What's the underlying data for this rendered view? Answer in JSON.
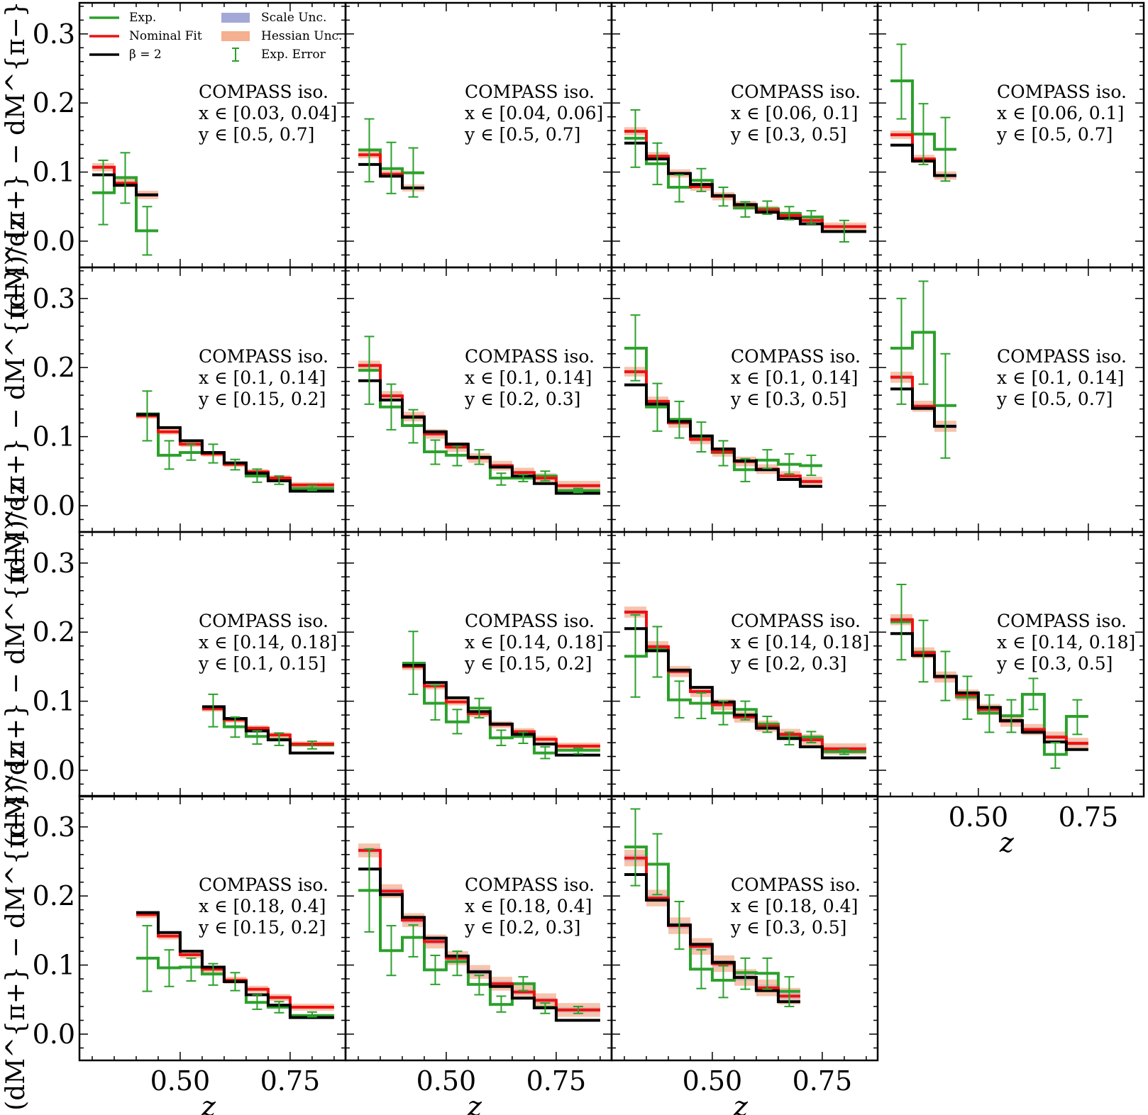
{
  "chart_data": {
    "type": "step-histogram-grid",
    "grid": {
      "rows": 4,
      "cols": 4
    },
    "xlabel": "z",
    "ylabel": "(dM^{π+} − dM^{π−})/dz",
    "xlim": [
      0.271,
      0.876
    ],
    "ylim": [
      -0.038,
      0.345
    ],
    "xticks": [
      0.5,
      0.75
    ],
    "xtick_labels": [
      "0.50",
      "0.75"
    ],
    "yticks": [
      0.0,
      0.1,
      0.2,
      0.3
    ],
    "ytick_labels": [
      "0.0",
      "0.1",
      "0.2",
      "0.3"
    ],
    "legend": {
      "placement": "top-left of first panel",
      "entries": [
        {
          "label": "Exp.",
          "kind": "line",
          "color": "#2ca02c"
        },
        {
          "label": "Nominal Fit",
          "kind": "line",
          "color": "#ee1111"
        },
        {
          "label": "β = 2",
          "kind": "line",
          "color": "#000000"
        },
        {
          "label": "Scale Unc.",
          "kind": "band",
          "color": "#a3a8d6"
        },
        {
          "label": "Hessian Unc.",
          "kind": "band",
          "color": "#f4b090"
        },
        {
          "label": "Exp. Error",
          "kind": "errorbar",
          "color": "#2ca02c"
        }
      ]
    },
    "colors": {
      "exp": "#2ca02c",
      "nominal": "#ee1111",
      "beta2": "#000000",
      "scale_band": "#a3a8d6",
      "hessian_band": "#f4b090"
    },
    "panels": [
      {
        "row": 0,
        "col": 0,
        "dataset": "COMPASS iso.",
        "x_bin": "x ∈ [0.03, 0.04]",
        "y_bin": "y ∈ [0.5, 0.7]",
        "bin_edges": [
          0.3,
          0.35,
          0.4,
          0.45
        ],
        "exp": [
          0.07,
          0.092,
          0.015
        ],
        "exp_err_hi": [
          0.117,
          0.128,
          0.05
        ],
        "exp_err_lo": [
          0.024,
          0.055,
          -0.02
        ],
        "nominal": [
          0.107,
          0.084,
          0.067
        ],
        "beta2": [
          0.096,
          0.081,
          0.067
        ],
        "hessian_unc": 0.006
      },
      {
        "row": 0,
        "col": 1,
        "dataset": "COMPASS iso.",
        "x_bin": "x ∈ [0.04, 0.06]",
        "y_bin": "y ∈ [0.5, 0.7]",
        "bin_edges": [
          0.3,
          0.35,
          0.4,
          0.45
        ],
        "exp": [
          0.132,
          0.105,
          0.099
        ],
        "exp_err_hi": [
          0.177,
          0.143,
          0.135
        ],
        "exp_err_lo": [
          0.086,
          0.069,
          0.064
        ],
        "nominal": [
          0.125,
          0.097,
          0.077
        ],
        "beta2": [
          0.111,
          0.094,
          0.077
        ],
        "hessian_unc": 0.005
      },
      {
        "row": 0,
        "col": 2,
        "dataset": "COMPASS iso.",
        "x_bin": "x ∈ [0.06, 0.1]",
        "y_bin": "y ∈ [0.3, 0.5]",
        "bin_edges": [
          0.3,
          0.35,
          0.4,
          0.45,
          0.5,
          0.55,
          0.6,
          0.65,
          0.7,
          0.75,
          0.85
        ],
        "exp": [
          0.149,
          0.112,
          0.078,
          0.088,
          0.065,
          0.048,
          0.047,
          0.04,
          0.035,
          0.014
        ],
        "exp_err_hi": [
          0.19,
          0.142,
          0.096,
          0.105,
          0.078,
          0.057,
          0.058,
          0.05,
          0.044,
          0.03
        ],
        "exp_err_lo": [
          0.107,
          0.082,
          0.057,
          0.072,
          0.051,
          0.035,
          0.039,
          0.031,
          0.025,
          -0.001
        ],
        "nominal": [
          0.159,
          0.123,
          0.098,
          0.079,
          0.065,
          0.052,
          0.045,
          0.037,
          0.03,
          0.021
        ],
        "beta2": [
          0.142,
          0.119,
          0.098,
          0.082,
          0.066,
          0.053,
          0.042,
          0.033,
          0.025,
          0.014
        ],
        "hessian_unc": 0.006
      },
      {
        "row": 0,
        "col": 3,
        "dataset": "COMPASS iso.",
        "x_bin": "x ∈ [0.06, 0.1]",
        "y_bin": "y ∈ [0.5, 0.7]",
        "bin_edges": [
          0.3,
          0.35,
          0.4,
          0.45
        ],
        "exp": [
          0.232,
          0.155,
          0.133
        ],
        "exp_err_hi": [
          0.285,
          0.199,
          0.179
        ],
        "exp_err_lo": [
          0.177,
          0.111,
          0.087
        ],
        "nominal": [
          0.154,
          0.119,
          0.095
        ],
        "beta2": [
          0.139,
          0.116,
          0.095
        ],
        "hessian_unc": 0.006
      },
      {
        "row": 1,
        "col": 0,
        "dataset": "COMPASS iso.",
        "x_bin": "x ∈ [0.1, 0.14]",
        "y_bin": "y ∈ [0.15, 0.2]",
        "bin_edges": [
          0.4,
          0.45,
          0.5,
          0.55,
          0.6,
          0.65,
          0.7,
          0.75,
          0.85
        ],
        "exp": [
          0.133,
          0.073,
          0.077,
          0.075,
          0.06,
          0.043,
          0.037,
          0.025
        ],
        "exp_err_hi": [
          0.166,
          0.094,
          0.089,
          0.089,
          0.067,
          0.053,
          0.043,
          0.029
        ],
        "exp_err_lo": [
          0.094,
          0.053,
          0.066,
          0.062,
          0.052,
          0.034,
          0.031,
          0.022
        ],
        "nominal": [
          0.13,
          0.107,
          0.089,
          0.075,
          0.06,
          0.049,
          0.04,
          0.03
        ],
        "beta2": [
          0.132,
          0.113,
          0.094,
          0.077,
          0.062,
          0.047,
          0.036,
          0.021
        ],
        "hessian_unc": 0.004
      },
      {
        "row": 1,
        "col": 1,
        "dataset": "COMPASS iso.",
        "x_bin": "x ∈ [0.1, 0.14]",
        "y_bin": "y ∈ [0.2, 0.3]",
        "bin_edges": [
          0.3,
          0.35,
          0.4,
          0.45,
          0.5,
          0.55,
          0.6,
          0.65,
          0.7,
          0.75,
          0.85
        ],
        "exp": [
          0.196,
          0.143,
          0.116,
          0.078,
          0.073,
          0.07,
          0.04,
          0.04,
          0.043,
          0.022
        ],
        "exp_err_hi": [
          0.245,
          0.176,
          0.139,
          0.095,
          0.086,
          0.081,
          0.047,
          0.045,
          0.05,
          0.025
        ],
        "exp_err_lo": [
          0.147,
          0.11,
          0.091,
          0.06,
          0.058,
          0.06,
          0.03,
          0.035,
          0.036,
          0.019
        ],
        "nominal": [
          0.203,
          0.159,
          0.129,
          0.104,
          0.085,
          0.069,
          0.058,
          0.048,
          0.04,
          0.029
        ],
        "beta2": [
          0.181,
          0.153,
          0.128,
          0.107,
          0.089,
          0.07,
          0.056,
          0.043,
          0.032,
          0.018
        ],
        "hessian_unc": 0.007
      },
      {
        "row": 1,
        "col": 2,
        "dataset": "COMPASS iso.",
        "x_bin": "x ∈ [0.1, 0.14]",
        "y_bin": "y ∈ [0.3, 0.5]",
        "bin_edges": [
          0.3,
          0.35,
          0.4,
          0.45,
          0.5,
          0.55,
          0.6,
          0.65,
          0.7,
          0.75
        ],
        "exp": [
          0.228,
          0.143,
          0.125,
          0.099,
          0.077,
          0.052,
          0.066,
          0.06,
          0.058
        ],
        "exp_err_hi": [
          0.276,
          0.177,
          0.151,
          0.121,
          0.094,
          0.068,
          0.081,
          0.075,
          0.073
        ],
        "exp_err_lo": [
          0.181,
          0.108,
          0.098,
          0.078,
          0.058,
          0.035,
          0.054,
          0.046,
          0.044
        ],
        "nominal": [
          0.194,
          0.151,
          0.12,
          0.096,
          0.078,
          0.064,
          0.053,
          0.043,
          0.035
        ],
        "beta2": [
          0.175,
          0.147,
          0.122,
          0.101,
          0.082,
          0.065,
          0.052,
          0.038,
          0.028
        ],
        "hessian_unc": 0.007
      },
      {
        "row": 1,
        "col": 3,
        "dataset": "COMPASS iso.",
        "x_bin": "x ∈ [0.1, 0.14]",
        "y_bin": "y ∈ [0.5, 0.7]",
        "bin_edges": [
          0.3,
          0.35,
          0.4,
          0.45
        ],
        "exp": [
          0.228,
          0.251,
          0.145
        ],
        "exp_err_hi": [
          0.3,
          0.325,
          0.22
        ],
        "exp_err_lo": [
          0.147,
          0.176,
          0.069
        ],
        "nominal": [
          0.186,
          0.144,
          0.115
        ],
        "beta2": [
          0.169,
          0.141,
          0.115
        ],
        "hessian_unc": 0.008
      },
      {
        "row": 2,
        "col": 0,
        "dataset": "COMPASS iso.",
        "x_bin": "x ∈ [0.14, 0.18]",
        "y_bin": "y ∈ [0.1, 0.15]",
        "bin_edges": [
          0.55,
          0.6,
          0.65,
          0.7,
          0.75,
          0.85
        ],
        "exp": [
          0.089,
          0.063,
          0.049,
          0.045,
          0.037
        ],
        "exp_err_hi": [
          0.11,
          0.077,
          0.057,
          0.054,
          0.042
        ],
        "exp_err_lo": [
          0.063,
          0.048,
          0.038,
          0.036,
          0.031
        ],
        "nominal": [
          0.089,
          0.073,
          0.061,
          0.051,
          0.038
        ],
        "beta2": [
          0.092,
          0.075,
          0.057,
          0.044,
          0.025
        ],
        "hessian_unc": 0.004
      },
      {
        "row": 2,
        "col": 1,
        "dataset": "COMPASS iso.",
        "x_bin": "x ∈ [0.14, 0.18]",
        "y_bin": "y ∈ [0.15, 0.2]",
        "bin_edges": [
          0.4,
          0.45,
          0.5,
          0.55,
          0.6,
          0.65,
          0.7,
          0.75,
          0.85
        ],
        "exp": [
          0.155,
          0.097,
          0.07,
          0.09,
          0.047,
          0.049,
          0.025,
          0.029
        ],
        "exp_err_hi": [
          0.201,
          0.123,
          0.088,
          0.104,
          0.058,
          0.055,
          0.034,
          0.032
        ],
        "exp_err_lo": [
          0.11,
          0.073,
          0.053,
          0.076,
          0.036,
          0.039,
          0.017,
          0.024
        ],
        "nominal": [
          0.15,
          0.122,
          0.099,
          0.082,
          0.066,
          0.056,
          0.045,
          0.035
        ],
        "beta2": [
          0.152,
          0.127,
          0.105,
          0.085,
          0.067,
          0.052,
          0.038,
          0.022
        ],
        "hessian_unc": 0.005
      },
      {
        "row": 2,
        "col": 2,
        "dataset": "COMPASS iso.",
        "x_bin": "x ∈ [0.14, 0.18]",
        "y_bin": "y ∈ [0.2, 0.3]",
        "bin_edges": [
          0.3,
          0.35,
          0.4,
          0.45,
          0.5,
          0.55,
          0.6,
          0.65,
          0.7,
          0.75,
          0.85
        ],
        "exp": [
          0.165,
          0.175,
          0.102,
          0.097,
          0.083,
          0.088,
          0.067,
          0.048,
          0.048,
          0.027
        ],
        "exp_err_hi": [
          0.225,
          0.208,
          0.129,
          0.112,
          0.1,
          0.1,
          0.078,
          0.055,
          0.056,
          0.03
        ],
        "exp_err_lo": [
          0.106,
          0.135,
          0.076,
          0.075,
          0.066,
          0.073,
          0.055,
          0.037,
          0.04,
          0.023
        ],
        "nominal": [
          0.229,
          0.179,
          0.143,
          0.114,
          0.095,
          0.077,
          0.064,
          0.052,
          0.044,
          0.031
        ],
        "beta2": [
          0.205,
          0.173,
          0.145,
          0.12,
          0.099,
          0.08,
          0.061,
          0.046,
          0.034,
          0.018
        ],
        "hessian_unc": 0.008
      },
      {
        "row": 2,
        "col": 3,
        "dataset": "COMPASS iso.",
        "x_bin": "x ∈ [0.14, 0.18]",
        "y_bin": "y ∈ [0.3, 0.5]",
        "bin_edges": [
          0.3,
          0.35,
          0.4,
          0.45,
          0.5,
          0.55,
          0.6,
          0.65,
          0.7,
          0.75
        ],
        "exp": [
          0.215,
          0.171,
          0.136,
          0.106,
          0.083,
          0.079,
          0.11,
          0.023,
          0.078
        ],
        "exp_err_hi": [
          0.269,
          0.217,
          0.172,
          0.136,
          0.109,
          0.102,
          0.133,
          0.04,
          0.102
        ],
        "exp_err_lo": [
          0.16,
          0.128,
          0.101,
          0.074,
          0.055,
          0.055,
          0.088,
          0.003,
          0.052
        ],
        "nominal": [
          0.218,
          0.17,
          0.135,
          0.109,
          0.088,
          0.071,
          0.059,
          0.048,
          0.039
        ],
        "beta2": [
          0.198,
          0.166,
          0.136,
          0.112,
          0.091,
          0.072,
          0.055,
          0.041,
          0.03
        ],
        "hessian_unc": 0.008
      },
      {
        "row": 3,
        "col": 0,
        "dataset": "COMPASS iso.",
        "x_bin": "x ∈ [0.18, 0.4]",
        "y_bin": "y ∈ [0.15, 0.2]",
        "bin_edges": [
          0.4,
          0.45,
          0.5,
          0.55,
          0.6,
          0.65,
          0.7,
          0.75,
          0.85
        ],
        "exp": [
          0.11,
          0.096,
          0.097,
          0.087,
          0.077,
          0.046,
          0.039,
          0.027
        ],
        "exp_err_hi": [
          0.157,
          0.122,
          0.11,
          0.102,
          0.089,
          0.057,
          0.047,
          0.032
        ],
        "exp_err_lo": [
          0.062,
          0.069,
          0.077,
          0.071,
          0.063,
          0.036,
          0.031,
          0.025
        ],
        "nominal": [
          0.173,
          0.142,
          0.115,
          0.094,
          0.078,
          0.065,
          0.053,
          0.039
        ],
        "beta2": [
          0.176,
          0.147,
          0.12,
          0.097,
          0.076,
          0.057,
          0.042,
          0.024
        ],
        "hessian_unc": 0.005
      },
      {
        "row": 3,
        "col": 1,
        "dataset": "COMPASS iso.",
        "x_bin": "x ∈ [0.18, 0.4]",
        "y_bin": "y ∈ [0.2, 0.3]",
        "bin_edges": [
          0.3,
          0.35,
          0.4,
          0.45,
          0.5,
          0.55,
          0.6,
          0.65,
          0.7,
          0.75,
          0.85
        ],
        "exp": [
          0.208,
          0.121,
          0.14,
          0.093,
          0.105,
          0.072,
          0.043,
          0.073,
          0.039,
          0.035
        ],
        "exp_err_hi": [
          0.268,
          0.157,
          0.158,
          0.114,
          0.12,
          0.085,
          0.055,
          0.083,
          0.045,
          0.04
        ],
        "exp_err_lo": [
          0.148,
          0.085,
          0.112,
          0.072,
          0.085,
          0.057,
          0.032,
          0.063,
          0.03,
          0.03
        ],
        "nominal": [
          0.266,
          0.207,
          0.165,
          0.134,
          0.11,
          0.09,
          0.073,
          0.061,
          0.049,
          0.035
        ],
        "beta2": [
          0.239,
          0.202,
          0.169,
          0.139,
          0.113,
          0.09,
          0.069,
          0.052,
          0.038,
          0.02
        ],
        "hessian_unc": 0.01
      },
      {
        "row": 3,
        "col": 2,
        "dataset": "COMPASS iso.",
        "x_bin": "x ∈ [0.18, 0.4]",
        "y_bin": "y ∈ [0.3, 0.5]",
        "bin_edges": [
          0.3,
          0.35,
          0.4,
          0.45,
          0.5,
          0.55,
          0.6,
          0.65,
          0.7
        ],
        "exp": [
          0.271,
          0.246,
          0.158,
          0.094,
          0.078,
          0.089,
          0.088,
          0.062
        ],
        "exp_err_hi": [
          0.326,
          0.29,
          0.192,
          0.122,
          0.099,
          0.11,
          0.11,
          0.083
        ],
        "exp_err_lo": [
          0.215,
          0.202,
          0.123,
          0.066,
          0.053,
          0.065,
          0.065,
          0.04
        ],
        "nominal": [
          0.255,
          0.197,
          0.157,
          0.127,
          0.102,
          0.082,
          0.067,
          0.055
        ],
        "beta2": [
          0.231,
          0.194,
          0.158,
          0.13,
          0.104,
          0.082,
          0.063,
          0.047
        ],
        "hessian_unc": 0.012
      }
    ]
  }
}
